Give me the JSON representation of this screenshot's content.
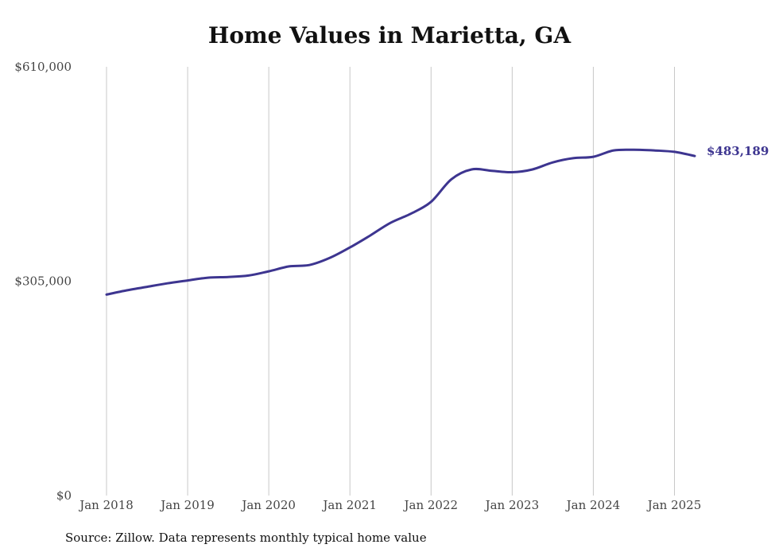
{
  "chart_data": {
    "type": "line",
    "title": "Home Values in Marietta, GA",
    "source": "Source: Zillow. Data represents monthly typical home value",
    "xlabel": "",
    "ylabel": "",
    "ylim": [
      0,
      610000
    ],
    "y_ticks": [
      0,
      305000,
      610000
    ],
    "y_tick_labels": [
      "$0",
      "$305,000",
      "$610,000"
    ],
    "x_ticks": [
      "2018-01",
      "2019-01",
      "2020-01",
      "2021-01",
      "2022-01",
      "2023-01",
      "2024-01",
      "2025-01"
    ],
    "x_tick_labels": [
      "Jan 2018",
      "Jan 2019",
      "Jan 2020",
      "Jan 2021",
      "Jan 2022",
      "Jan 2023",
      "Jan 2024",
      "Jan 2025"
    ],
    "xlim": [
      "2018-01",
      "2025-04"
    ],
    "grid": "vertical",
    "line_color": "#3d3590",
    "end_label": "$483,189",
    "series": [
      {
        "x": [
          "2018-01",
          "2018-04",
          "2018-07",
          "2018-10",
          "2019-01",
          "2019-04",
          "2019-07",
          "2019-10",
          "2020-01",
          "2020-04",
          "2020-07",
          "2020-10",
          "2021-01",
          "2021-04",
          "2021-07",
          "2021-10",
          "2022-01",
          "2022-04",
          "2022-07",
          "2022-10",
          "2023-01",
          "2023-04",
          "2023-07",
          "2023-10",
          "2024-01",
          "2024-04",
          "2024-07",
          "2024-10",
          "2025-01",
          "2025-04"
        ],
        "values": [
          286000,
          292000,
          297000,
          302000,
          306000,
          310000,
          311000,
          313000,
          319000,
          326000,
          328000,
          338000,
          353000,
          370000,
          388000,
          401000,
          418000,
          450000,
          464000,
          462000,
          460000,
          464000,
          474000,
          480000,
          482000,
          491000,
          492000,
          491000,
          489000,
          483189
        ]
      }
    ]
  }
}
